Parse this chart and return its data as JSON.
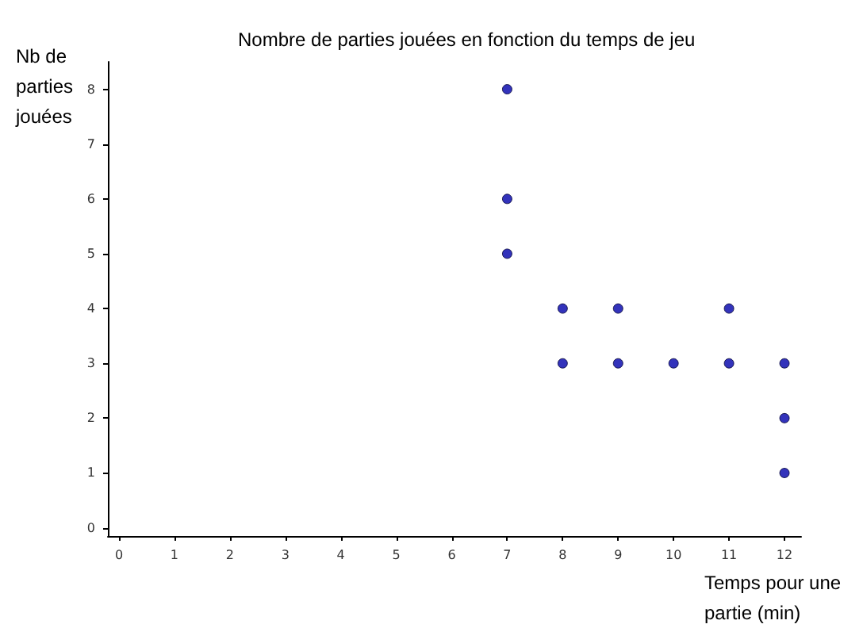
{
  "chart_data": {
    "type": "scatter",
    "title": "Nombre de parties jouées en fonction du temps de jeu",
    "xlabel": "Temps pour une partie (min)",
    "ylabel": "Nb de parties jouées",
    "x": [
      7,
      7,
      7,
      8,
      8,
      9,
      9,
      10,
      11,
      11,
      12,
      12,
      12
    ],
    "values": [
      8,
      6,
      5,
      4,
      3,
      4,
      3,
      3,
      4,
      3,
      3,
      2,
      1
    ],
    "color": "#0000aa",
    "marker": "circle",
    "grid": false,
    "xlim": [
      -0.2,
      12.3
    ],
    "ylim": [
      -0.15,
      8.5
    ],
    "xticks": [
      0,
      1,
      2,
      3,
      4,
      5,
      6,
      7,
      8,
      9,
      10,
      11,
      12
    ],
    "yticks": [
      0,
      1,
      2,
      3,
      4,
      5,
      6,
      7,
      8
    ]
  }
}
